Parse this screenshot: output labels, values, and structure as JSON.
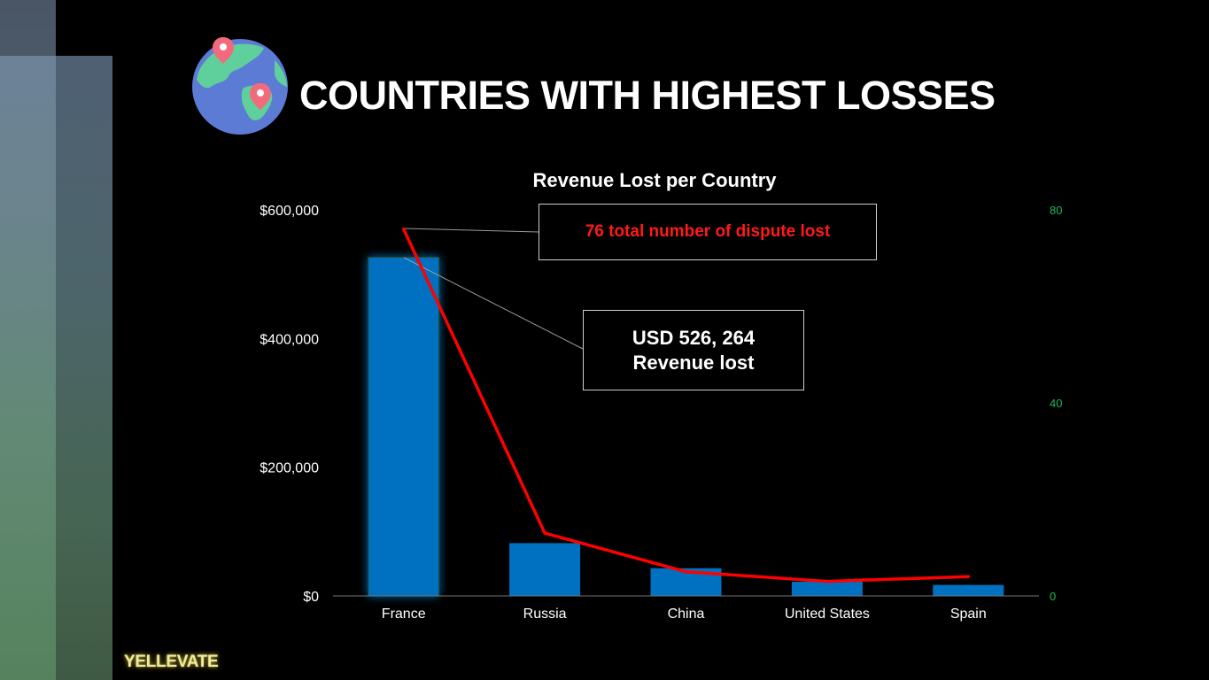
{
  "slide": {
    "title": "COUNTRIES WITH HIGHEST LOSSES",
    "brand": "YELLEVATE",
    "icon": "globe-location-pin-icon"
  },
  "callouts": {
    "disputes": "76 total number of  dispute lost",
    "revenue_line1": "USD 526, 264",
    "revenue_line2": "Revenue lost"
  },
  "chart_data": {
    "type": "bar",
    "title": "Revenue Lost per Country",
    "categories": [
      "France",
      "Russia",
      "China",
      "United States",
      "Spain"
    ],
    "series": [
      {
        "type": "bar",
        "axis": "left",
        "color": "#0070c0",
        "values": [
          526264,
          82000,
          43000,
          22000,
          17000
        ]
      },
      {
        "type": "line",
        "axis": "right",
        "color": "#ff0000",
        "values": [
          76,
          13,
          5,
          3,
          4
        ]
      }
    ],
    "y_axis": {
      "min": 0,
      "max": 600000,
      "ticks": [
        0,
        200000,
        400000,
        600000
      ],
      "tick_labels": [
        "$0",
        "$200,000",
        "$400,000",
        "$600,000"
      ]
    },
    "y2_axis": {
      "min": 0,
      "max": 80,
      "ticks": [
        0,
        40,
        80
      ],
      "tick_labels": [
        "0",
        "40",
        "80"
      ],
      "color": "#1db954"
    },
    "grid": false,
    "legend": "none"
  }
}
